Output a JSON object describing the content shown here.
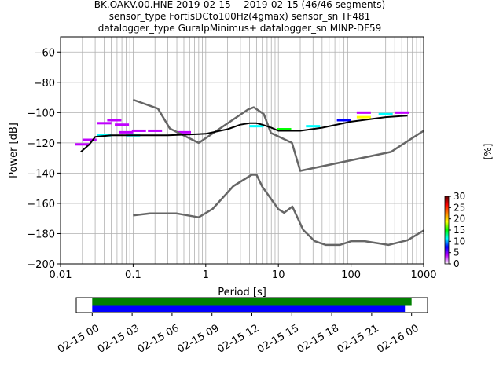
{
  "title_lines": [
    "BK.OAKV.00.HNE   2019-02-15 -- 2019-02-15  (46/46 segments)",
    "sensor_type FortisDCto100Hz(4gmax) sensor_sn TF481",
    "datalogger_type GuralpMinimus+ datalogger_sn MINP-DF59"
  ],
  "chart_data": [
    {
      "type": "heatmap",
      "subtype": "probabilistic-power-spectral-density",
      "xlabel": "Period [s]",
      "ylabel": "Power [dB]",
      "xscale": "log",
      "xlim": [
        0.01,
        1000
      ],
      "ylim": [
        -200,
        -50
      ],
      "x_ticks": [
        "0.01",
        "0.1",
        "1",
        "10",
        "100",
        "1000"
      ],
      "x_tick_values": [
        0.01,
        0.1,
        1,
        10,
        100,
        1000
      ],
      "y_ticks": [
        "−200",
        "−180",
        "−160",
        "−140",
        "−120",
        "−100",
        "−80",
        "−60"
      ],
      "y_tick_values": [
        -200,
        -180,
        -160,
        -140,
        -120,
        -100,
        -80,
        -60
      ],
      "grid": true,
      "colorbar": {
        "label": "[%]",
        "range": [
          0,
          30
        ],
        "ticks": [
          "0",
          "5",
          "10",
          "15",
          "20",
          "25",
          "30"
        ],
        "tick_values": [
          0,
          5,
          10,
          15,
          20,
          25,
          30
        ],
        "colormap": [
          "#ffffff",
          "#c000ff",
          "#0000ff",
          "#00ffff",
          "#00ff00",
          "#ffff00",
          "#ff8000",
          "#ff0000",
          "#600000"
        ]
      },
      "mode_curve": {
        "color": "#000000",
        "period": [
          0.019,
          0.025,
          0.03,
          0.05,
          0.1,
          0.3,
          1,
          2,
          3,
          4,
          5,
          6,
          8,
          10,
          20,
          40,
          100,
          300,
          600
        ],
        "power": [
          -126,
          -121,
          -116,
          -115,
          -115,
          -115,
          -114,
          -111,
          -108,
          -107,
          -107,
          -108,
          -110,
          -112,
          -112,
          -110,
          -106,
          -103,
          -102
        ]
      },
      "density_cells": [
        {
          "period": 0.02,
          "power": -121,
          "percent": 2
        },
        {
          "period": 0.025,
          "power": -118,
          "percent": 2
        },
        {
          "period": 0.04,
          "power": -107,
          "percent": 2
        },
        {
          "period": 0.055,
          "power": -105,
          "percent": 3
        },
        {
          "period": 0.07,
          "power": -108,
          "percent": 2
        },
        {
          "period": 0.08,
          "power": -113,
          "percent": 3
        },
        {
          "period": 0.12,
          "power": -112,
          "percent": 2
        },
        {
          "period": 0.2,
          "power": -112,
          "percent": 2
        },
        {
          "period": 0.5,
          "power": -113,
          "percent": 2
        },
        {
          "period": 0.04,
          "power": -115,
          "percent": 10
        },
        {
          "period": 0.1,
          "power": -115,
          "percent": 12
        },
        {
          "period": 5,
          "power": -109,
          "percent": 10
        },
        {
          "period": 12,
          "power": -111,
          "percent": 15
        },
        {
          "period": 30,
          "power": -109,
          "percent": 12
        },
        {
          "period": 80,
          "power": -105,
          "percent": 8
        },
        {
          "period": 150,
          "power": -103,
          "percent": 18
        },
        {
          "period": 150,
          "power": -100,
          "percent": 2
        },
        {
          "period": 300,
          "power": -101,
          "percent": 10
        },
        {
          "period": 500,
          "power": -100,
          "percent": 5
        }
      ],
      "nhnm": {
        "name": "",
        "color": "#666666",
        "period": [
          0.1,
          0.22,
          0.32,
          0.8,
          3.8,
          4.6,
          6.3,
          7.9,
          15.4,
          20,
          354.8,
          1000
        ],
        "power": [
          -91.5,
          -97.4,
          -110.5,
          -120,
          -98,
          -96.5,
          -101,
          -113.5,
          -120,
          -138.5,
          -126,
          -112
        ]
      },
      "nlnm": {
        "name": "",
        "color": "#666666",
        "period": [
          0.1,
          0.17,
          0.4,
          0.8,
          1.24,
          2.4,
          4.3,
          5,
          6,
          10,
          12,
          15.6,
          21.9,
          31.6,
          45,
          70,
          101,
          154,
          328,
          600,
          1000
        ],
        "power": [
          -168,
          -166.7,
          -166.7,
          -169.2,
          -163.7,
          -148.6,
          -141.1,
          -141.1,
          -149,
          -163.8,
          -166.2,
          -162.1,
          -177.5,
          -185,
          -187.5,
          -187.5,
          -185,
          -185,
          -187.5,
          -184.4,
          -178
        ]
      }
    },
    {
      "type": "timeline",
      "x_ticks": [
        "02-15 00",
        "02-15 03",
        "02-15 06",
        "02-15 09",
        "02-15 12",
        "02-15 15",
        "02-15 18",
        "02-15 21",
        "02-16 00"
      ],
      "x_tick_hours": [
        0,
        3,
        6,
        9,
        12,
        15,
        18,
        21,
        24
      ],
      "xlim_hours": [
        -1.2,
        25.2
      ],
      "bars": [
        {
          "color": "#008000",
          "start_hour": 0,
          "end_hour": 24.0
        },
        {
          "color": "#0000ff",
          "start_hour": 0,
          "end_hour": 23.5
        }
      ]
    }
  ]
}
